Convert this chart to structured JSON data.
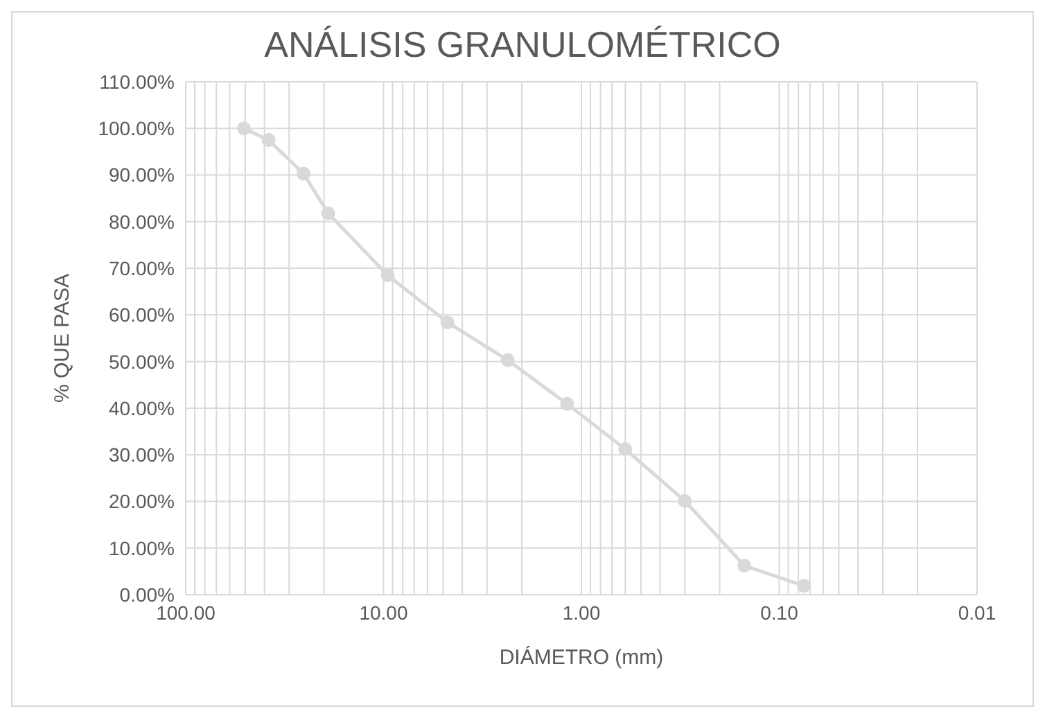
{
  "chart_data": {
    "type": "line",
    "title": "ANÁLISIS GRANULOMÉTRICO",
    "xlabel": "DIÁMETRO (mm)",
    "ylabel": "% QUE PASA",
    "x": [
      50.8,
      38.1,
      25.4,
      19.05,
      9.525,
      4.75,
      2.36,
      1.18,
      0.6,
      0.3,
      0.15,
      0.075
    ],
    "series": [
      {
        "color": "#d9d9d9",
        "values": [
          100,
          97.5,
          90.3,
          81.8,
          68.5,
          58.4,
          50.3,
          40.9,
          31.2,
          20.1,
          6.2,
          1.9
        ]
      }
    ],
    "log": "x",
    "marker": "circle",
    "grid": true,
    "xlim": [
      100,
      0.01
    ],
    "xticks": [
      {
        "value": 100,
        "label": "100.00"
      },
      {
        "value": 90,
        "label": null
      },
      {
        "value": 80,
        "label": null
      },
      {
        "value": 70,
        "label": null
      },
      {
        "value": 60,
        "label": null
      },
      {
        "value": 50,
        "label": null
      },
      {
        "value": 40,
        "label": null
      },
      {
        "value": 30,
        "label": null
      },
      {
        "value": 20,
        "label": null
      },
      {
        "value": 10,
        "label": "10.00"
      },
      {
        "value": 9,
        "label": null
      },
      {
        "value": 8,
        "label": null
      },
      {
        "value": 7,
        "label": null
      },
      {
        "value": 6,
        "label": null
      },
      {
        "value": 5,
        "label": null
      },
      {
        "value": 4,
        "label": null
      },
      {
        "value": 3,
        "label": null
      },
      {
        "value": 2,
        "label": null
      },
      {
        "value": 1,
        "label": "1.00"
      },
      {
        "value": 0.9,
        "label": null
      },
      {
        "value": 0.8,
        "label": null
      },
      {
        "value": 0.7,
        "label": null
      },
      {
        "value": 0.6,
        "label": null
      },
      {
        "value": 0.5,
        "label": null
      },
      {
        "value": 0.4,
        "label": null
      },
      {
        "value": 0.3,
        "label": null
      },
      {
        "value": 0.2,
        "label": null
      },
      {
        "value": 0.1,
        "label": "0.10"
      },
      {
        "value": 0.09,
        "label": null
      },
      {
        "value": 0.08,
        "label": null
      },
      {
        "value": 0.07,
        "label": null
      },
      {
        "value": 0.06,
        "label": null
      },
      {
        "value": 0.05,
        "label": null
      },
      {
        "value": 0.04,
        "label": null
      },
      {
        "value": 0.03,
        "label": null
      },
      {
        "value": 0.02,
        "label": null
      },
      {
        "value": 0.01,
        "label": "0.01"
      }
    ],
    "ylim": [
      0,
      110
    ],
    "yticks": [
      {
        "value": 0,
        "label": "0.00%"
      },
      {
        "value": 10,
        "label": "10.00%"
      },
      {
        "value": 20,
        "label": "20.00%"
      },
      {
        "value": 30,
        "label": "30.00%"
      },
      {
        "value": 40,
        "label": "40.00%"
      },
      {
        "value": 50,
        "label": "50.00%"
      },
      {
        "value": 60,
        "label": "60.00%"
      },
      {
        "value": 70,
        "label": "70.00%"
      },
      {
        "value": 80,
        "label": "80.00%"
      },
      {
        "value": 90,
        "label": "90.00%"
      },
      {
        "value": 100,
        "label": "100.00%"
      },
      {
        "value": 110,
        "label": "110.00%"
      }
    ]
  }
}
